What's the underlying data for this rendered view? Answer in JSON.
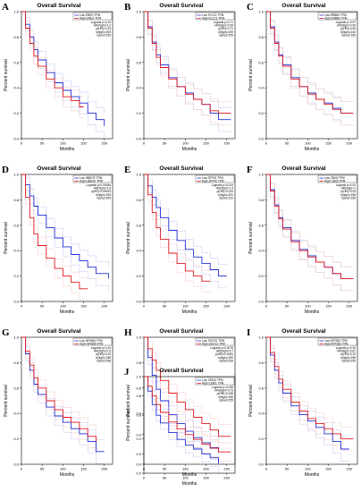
{
  "colors": {
    "low": "#1f2dd6",
    "high": "#e0181f",
    "ci_low": "#9a9ae6",
    "ci_high": "#f0a0a0"
  },
  "common": {
    "title": "Overall Survival",
    "xlabel": "Months",
    "ylabel": "Percent survival",
    "yticks": [
      "0.0",
      "0.2",
      "0.4",
      "0.6",
      "0.8",
      "1.0"
    ]
  },
  "chart_data": [
    {
      "type": "line",
      "letter": "A",
      "title": "Overall Survival",
      "xlabel": "Months",
      "ylabel": "Percent survival",
      "xticks": [
        "0",
        "50",
        "100",
        "150",
        "200"
      ],
      "xlim": [
        0,
        220
      ],
      "ylim": [
        0,
        1
      ],
      "legend": [
        "Low EREG TPM",
        "High EREG TPM"
      ],
      "stats": [
        "Logrank p=0.33",
        "HR(high)=1.2",
        "p(HR)=0.33",
        "n(high)=259",
        "n(low)=259"
      ],
      "series": [
        {
          "name": "Low EREG TPM",
          "x": [
            0,
            10,
            20,
            30,
            40,
            60,
            80,
            100,
            120,
            140,
            160,
            180,
            200
          ],
          "y": [
            1,
            0.9,
            0.8,
            0.7,
            0.62,
            0.52,
            0.44,
            0.38,
            0.33,
            0.28,
            0.2,
            0.15,
            0.1
          ]
        },
        {
          "name": "High EREG TPM",
          "x": [
            0,
            10,
            20,
            30,
            40,
            60,
            80,
            100,
            120,
            140,
            150
          ],
          "y": [
            1,
            0.87,
            0.75,
            0.65,
            0.57,
            0.47,
            0.4,
            0.33,
            0.3,
            0.25,
            0.25
          ]
        }
      ]
    },
    {
      "type": "line",
      "letter": "B",
      "title": "Overall Survival",
      "xlabel": "Months",
      "ylabel": "Percent survival",
      "xticks": [
        "0",
        "50",
        "100",
        "150",
        "200"
      ],
      "xlim": [
        0,
        220
      ],
      "ylim": [
        0,
        1
      ],
      "legend": [
        "Low FLCC1 TPM",
        "High FLCC1 TPM"
      ],
      "stats": [
        "Logrank p=0.71",
        "HR(high)=0.95",
        "p(HR)=0.71",
        "n(high)=259",
        "n(low)=259"
      ],
      "series": [
        {
          "name": "Low FLCC1 TPM",
          "x": [
            0,
            10,
            20,
            30,
            40,
            60,
            80,
            100,
            120,
            140,
            160,
            180,
            210
          ],
          "y": [
            1,
            0.88,
            0.76,
            0.66,
            0.58,
            0.48,
            0.41,
            0.36,
            0.31,
            0.27,
            0.2,
            0.15,
            0.15
          ]
        },
        {
          "name": "High FLCC1 TPM",
          "x": [
            0,
            10,
            20,
            30,
            40,
            60,
            80,
            100,
            120,
            140,
            160,
            180,
            210
          ],
          "y": [
            1,
            0.87,
            0.75,
            0.64,
            0.56,
            0.47,
            0.41,
            0.35,
            0.31,
            0.27,
            0.22,
            0.2,
            0.2
          ]
        }
      ]
    },
    {
      "type": "line",
      "letter": "C",
      "title": "Overall Survival",
      "xlabel": "Months",
      "ylabel": "Percent survival",
      "xticks": [
        "0",
        "50",
        "100",
        "150",
        "200"
      ],
      "xlim": [
        0,
        220
      ],
      "ylim": [
        0,
        1
      ],
      "legend": [
        "Low ERBB4 TPM",
        "High ERBB4 TPM"
      ],
      "stats": [
        "Logrank p=0.97",
        "HR(high)=0.99",
        "p(HR)=0.96",
        "n(high)=242",
        "n(low)=185"
      ],
      "series": [
        {
          "name": "Low ERBB4 TPM",
          "x": [
            0,
            10,
            20,
            30,
            40,
            60,
            80,
            100,
            120,
            140,
            160,
            180,
            210
          ],
          "y": [
            1,
            0.88,
            0.76,
            0.66,
            0.58,
            0.48,
            0.41,
            0.36,
            0.31,
            0.28,
            0.24,
            0.2,
            0.2
          ]
        },
        {
          "name": "High ERBB4 TPM",
          "x": [
            0,
            10,
            20,
            30,
            40,
            60,
            80,
            100,
            120,
            140,
            160,
            180,
            210
          ],
          "y": [
            1,
            0.87,
            0.75,
            0.65,
            0.57,
            0.47,
            0.41,
            0.35,
            0.31,
            0.27,
            0.23,
            0.2,
            0.2
          ]
        }
      ]
    },
    {
      "type": "line",
      "letter": "D",
      "title": "Overall Survival",
      "xlabel": "Months",
      "ylabel": "Percent survival",
      "xticks": [
        "0",
        "50",
        "100",
        "150",
        "200"
      ],
      "xlim": [
        0,
        220
      ],
      "ylim": [
        0,
        1
      ],
      "legend": [
        "Low HBEGF TPM",
        "High HBEGF TPM"
      ],
      "stats": [
        "Logrank p=0.00084",
        "HR(high)=1.6",
        "p(HR)=0.00093",
        "n(high)=259",
        "n(low)=259"
      ],
      "series": [
        {
          "name": "Low HBEGF TPM",
          "x": [
            0,
            10,
            20,
            30,
            40,
            60,
            80,
            100,
            120,
            140,
            160,
            180,
            210
          ],
          "y": [
            1,
            0.92,
            0.83,
            0.75,
            0.68,
            0.58,
            0.5,
            0.43,
            0.37,
            0.32,
            0.27,
            0.22,
            0.18
          ]
        },
        {
          "name": "High HBEGF TPM",
          "x": [
            0,
            10,
            20,
            30,
            40,
            60,
            80,
            100,
            120,
            140,
            160
          ],
          "y": [
            1,
            0.82,
            0.66,
            0.53,
            0.44,
            0.34,
            0.26,
            0.2,
            0.15,
            0.1,
            0.1
          ]
        }
      ]
    },
    {
      "type": "line",
      "letter": "E",
      "title": "Overall Survival",
      "xlabel": "Months",
      "ylabel": "Percent survival",
      "xticks": [
        "0",
        "50",
        "100",
        "150",
        "200"
      ],
      "xlim": [
        0,
        220
      ],
      "ylim": [
        0,
        1
      ],
      "legend": [
        "Low ZFP42 TPM",
        "High ZFP42 TPM"
      ],
      "stats": [
        "Logrank p=0.014",
        "HR(high)=1.4",
        "p(HR)=0.015",
        "n(high)=251",
        "n(low)=220"
      ],
      "series": [
        {
          "name": "Low ZFP42 TPM",
          "x": [
            0,
            10,
            20,
            30,
            40,
            60,
            80,
            100,
            120,
            140,
            160,
            180,
            200
          ],
          "y": [
            1,
            0.91,
            0.82,
            0.74,
            0.66,
            0.56,
            0.48,
            0.41,
            0.35,
            0.3,
            0.25,
            0.2,
            0.2
          ]
        },
        {
          "name": "High ZFP42 TPM",
          "x": [
            0,
            10,
            20,
            30,
            40,
            60,
            80,
            100,
            120,
            140,
            160
          ],
          "y": [
            1,
            0.84,
            0.7,
            0.58,
            0.49,
            0.38,
            0.3,
            0.24,
            0.2,
            0.16,
            0.16
          ]
        }
      ]
    },
    {
      "type": "line",
      "letter": "F",
      "title": "Overall Survival",
      "xlabel": "Months",
      "ylabel": "Percent survival",
      "xticks": [
        "0",
        "50",
        "100",
        "150",
        "200"
      ],
      "xlim": [
        0,
        220
      ],
      "ylim": [
        0,
        1
      ],
      "legend": [
        "Low CBX6 TPM",
        "High CBX6 TPM"
      ],
      "stats": [
        "Logrank p=0.92",
        "HR(high)=1",
        "p(HR)=0.93",
        "n(high)=258",
        "n(low)=258"
      ],
      "series": [
        {
          "name": "Low CBX6 TPM",
          "x": [
            0,
            10,
            20,
            30,
            40,
            60,
            80,
            100,
            120,
            140,
            160,
            180,
            210
          ],
          "y": [
            1,
            0.88,
            0.76,
            0.66,
            0.58,
            0.48,
            0.41,
            0.36,
            0.31,
            0.27,
            0.22,
            0.18,
            0.18
          ]
        },
        {
          "name": "High CBX6 TPM",
          "x": [
            0,
            10,
            20,
            30,
            40,
            60,
            80,
            100,
            120,
            140,
            160,
            180,
            210
          ],
          "y": [
            1,
            0.87,
            0.75,
            0.65,
            0.57,
            0.47,
            0.4,
            0.35,
            0.31,
            0.27,
            0.22,
            0.18,
            0.18
          ]
        }
      ]
    },
    {
      "type": "line",
      "letter": "G",
      "title": "Overall Survival",
      "xlabel": "Months",
      "ylabel": "Percent survival",
      "xticks": [
        "0",
        "50",
        "100",
        "150",
        "200"
      ],
      "xlim": [
        0,
        220
      ],
      "ylim": [
        0,
        1
      ],
      "legend": [
        "Low NFKBIA TPM",
        "High NFKBIA TPM"
      ],
      "stats": [
        "Logrank p=0.43",
        "HR(high)=0.9",
        "p(HR)=0.43",
        "n(high)=258",
        "n(low)=258"
      ],
      "series": [
        {
          "name": "Low NFKBIA TPM",
          "x": [
            0,
            10,
            20,
            30,
            40,
            60,
            80,
            100,
            120,
            140,
            160,
            180,
            200
          ],
          "y": [
            1,
            0.87,
            0.74,
            0.63,
            0.55,
            0.45,
            0.38,
            0.33,
            0.28,
            0.24,
            0.18,
            0.1,
            0.1
          ]
        },
        {
          "name": "High NFKBIA TPM",
          "x": [
            0,
            10,
            20,
            30,
            40,
            60,
            80,
            100,
            120,
            140,
            160,
            180
          ],
          "y": [
            1,
            0.89,
            0.78,
            0.68,
            0.6,
            0.5,
            0.43,
            0.37,
            0.33,
            0.28,
            0.22,
            0.18
          ]
        }
      ]
    },
    {
      "type": "line",
      "letter": "H",
      "title": "Overall Survival",
      "xlabel": "Months",
      "ylabel": "Percent survival",
      "xticks": [
        "0",
        "50",
        "100",
        "150",
        "200"
      ],
      "xlim": [
        0,
        220
      ],
      "ylim": [
        0,
        1
      ],
      "legend": [
        "Low SOCS1 TPM",
        "High SOCS1 TPM"
      ],
      "stats": [
        "Logrank p=0.0078",
        "HR(high)=0.7",
        "p(HR)=0.0081",
        "n(high)=259",
        "n(low)=259"
      ],
      "series": [
        {
          "name": "Low SOCS1 TPM",
          "x": [
            0,
            10,
            20,
            30,
            40,
            60,
            80,
            100,
            120,
            140,
            160,
            180
          ],
          "y": [
            1,
            0.84,
            0.7,
            0.59,
            0.5,
            0.39,
            0.32,
            0.26,
            0.21,
            0.17,
            0.13,
            0.1
          ]
        },
        {
          "name": "High SOCS1 TPM",
          "x": [
            0,
            10,
            20,
            30,
            40,
            60,
            80,
            100,
            120,
            140,
            160,
            180,
            210
          ],
          "y": [
            1,
            0.91,
            0.82,
            0.74,
            0.66,
            0.56,
            0.49,
            0.43,
            0.37,
            0.32,
            0.27,
            0.22,
            0.22
          ]
        }
      ]
    },
    {
      "type": "line",
      "letter": "I",
      "title": "Overall Survival",
      "xlabel": "Months",
      "ylabel": "Percent survival",
      "xticks": [
        "0",
        "50",
        "100",
        "150",
        "200"
      ],
      "xlim": [
        0,
        220
      ],
      "ylim": [
        0,
        1
      ],
      "legend": [
        "Low ATP2B2 TPM",
        "High ATP2B2 TPM"
      ],
      "stats": [
        "Logrank p=0.33",
        "HR(high)=0.87",
        "p(HR)=0.33",
        "n(high)=258",
        "n(low)=259"
      ],
      "series": [
        {
          "name": "Low ATP2B2 TPM",
          "x": [
            0,
            10,
            20,
            30,
            40,
            60,
            80,
            100,
            120,
            140,
            160,
            180,
            200
          ],
          "y": [
            1,
            0.86,
            0.74,
            0.64,
            0.56,
            0.46,
            0.39,
            0.34,
            0.29,
            0.24,
            0.18,
            0.12,
            0.12
          ]
        },
        {
          "name": "High ATP2B2 TPM",
          "x": [
            0,
            10,
            20,
            30,
            40,
            60,
            80,
            100,
            120,
            140,
            160,
            180,
            210
          ],
          "y": [
            1,
            0.88,
            0.77,
            0.67,
            0.59,
            0.49,
            0.42,
            0.36,
            0.32,
            0.28,
            0.24,
            0.2,
            0.2
          ]
        }
      ]
    },
    {
      "type": "line",
      "letter": "J",
      "title": "Overall Survival",
      "xlabel": "Months",
      "ylabel": "Percent survival",
      "xticks": [
        "0",
        "50",
        "100",
        "150",
        "200"
      ],
      "xlim": [
        0,
        220
      ],
      "ylim": [
        0,
        1
      ],
      "legend": [
        "Low CENI1 TPM",
        "High CENI1 TPM"
      ],
      "stats": [
        "Logrank p=0.035",
        "HR(high)=0.73",
        "p(HR)=0.035",
        "n(high)=256",
        "n(low)=255"
      ],
      "series": [
        {
          "name": "Low CENI1 TPM",
          "x": [
            0,
            10,
            20,
            30,
            40,
            60,
            80,
            100,
            120,
            140,
            160,
            180
          ],
          "y": [
            1,
            0.85,
            0.71,
            0.6,
            0.52,
            0.42,
            0.35,
            0.29,
            0.25,
            0.2,
            0.16,
            0.1
          ]
        },
        {
          "name": "High CENI1 TPM",
          "x": [
            0,
            10,
            20,
            30,
            40,
            60,
            80,
            100,
            120,
            140,
            160,
            180,
            210
          ],
          "y": [
            1,
            0.9,
            0.8,
            0.71,
            0.63,
            0.53,
            0.46,
            0.4,
            0.35,
            0.3,
            0.26,
            0.22,
            0.22
          ]
        }
      ]
    }
  ]
}
